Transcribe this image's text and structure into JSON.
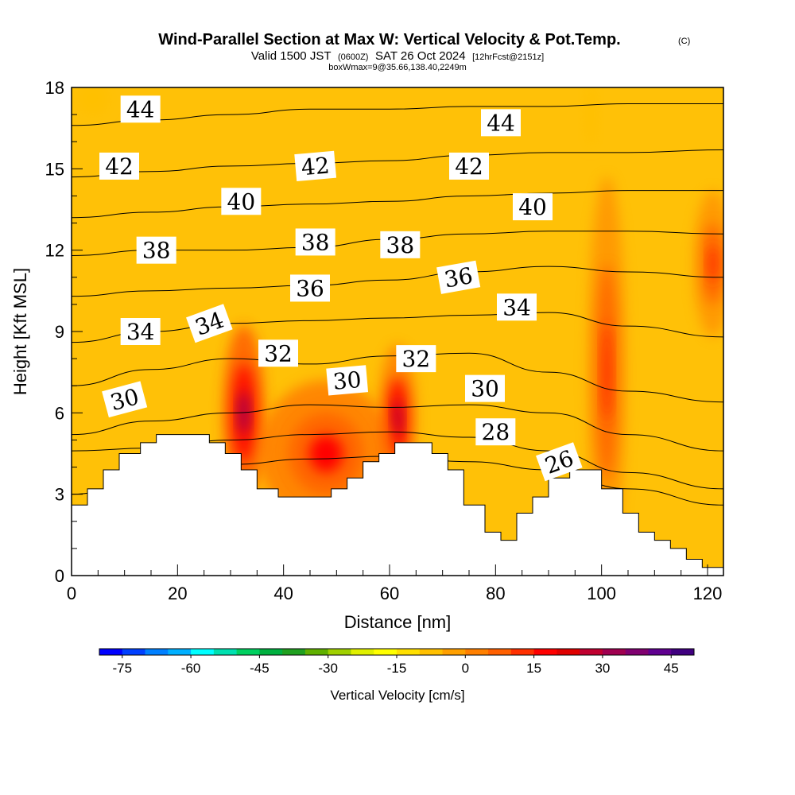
{
  "chart_data": {
    "type": "heatmap",
    "title": "Wind-Parallel Section at Max W: Vertical Velocity & Pot.Temp.",
    "title_mark": "(C)",
    "subtitle_parts": {
      "a": "Valid 1500 JST",
      "b": "(0600Z)",
      "c": "SAT 26 Oct 2024",
      "d": "[12hrFcst@2151z]"
    },
    "subtitle2": "boxWmax=9@35.66,138.40,2249m",
    "xlabel": "Distance [nm]",
    "ylabel": "Height [Kft MSL]",
    "xlim": [
      0,
      123
    ],
    "ylim": [
      0,
      18
    ],
    "x_ticks": [
      "0",
      "20",
      "40",
      "60",
      "80",
      "100",
      "120"
    ],
    "y_ticks": [
      "0",
      "3",
      "6",
      "9",
      "12",
      "15",
      "18"
    ],
    "background_fill": "#FFC107",
    "terrain_fill": "#ffffff",
    "terrain": [
      [
        0,
        2.6
      ],
      [
        3,
        2.6
      ],
      [
        3,
        3.2
      ],
      [
        6,
        3.2
      ],
      [
        6,
        3.9
      ],
      [
        9,
        3.9
      ],
      [
        9,
        4.5
      ],
      [
        13,
        4.5
      ],
      [
        13,
        4.9
      ],
      [
        16,
        4.9
      ],
      [
        16,
        5.2
      ],
      [
        26,
        5.2
      ],
      [
        26,
        4.9
      ],
      [
        29,
        4.9
      ],
      [
        29,
        4.5
      ],
      [
        32,
        4.5
      ],
      [
        32,
        3.9
      ],
      [
        35,
        3.9
      ],
      [
        35,
        3.2
      ],
      [
        39,
        3.2
      ],
      [
        39,
        2.9
      ],
      [
        49,
        2.9
      ],
      [
        49,
        3.2
      ],
      [
        52,
        3.2
      ],
      [
        52,
        3.6
      ],
      [
        55,
        3.6
      ],
      [
        55,
        4.2
      ],
      [
        58,
        4.2
      ],
      [
        58,
        4.5
      ],
      [
        61,
        4.5
      ],
      [
        61,
        4.9
      ],
      [
        68,
        4.9
      ],
      [
        68,
        4.5
      ],
      [
        71,
        4.5
      ],
      [
        71,
        3.9
      ],
      [
        74,
        3.9
      ],
      [
        74,
        2.6
      ],
      [
        78,
        2.6
      ],
      [
        78,
        1.6
      ],
      [
        81,
        1.6
      ],
      [
        81,
        1.3
      ],
      [
        84,
        1.3
      ],
      [
        84,
        2.3
      ],
      [
        87,
        2.3
      ],
      [
        87,
        2.9
      ],
      [
        90,
        2.9
      ],
      [
        90,
        3.6
      ],
      [
        94,
        3.6
      ],
      [
        94,
        3.9
      ],
      [
        100,
        3.9
      ],
      [
        100,
        3.2
      ],
      [
        104,
        3.2
      ],
      [
        104,
        2.3
      ],
      [
        107,
        2.3
      ],
      [
        107,
        1.6
      ],
      [
        110,
        1.6
      ],
      [
        110,
        1.3
      ],
      [
        113,
        1.3
      ],
      [
        113,
        1.0
      ],
      [
        116,
        1.0
      ],
      [
        116,
        0.6
      ],
      [
        119,
        0.6
      ],
      [
        119,
        0.3
      ],
      [
        123,
        0.3
      ]
    ],
    "theta_contours": [
      {
        "label": "26",
        "label_pos": [
          92,
          4.2
        ],
        "rot": -20,
        "y": [
          3.0,
          3.6,
          4.1,
          4.3,
          4.4,
          4.2,
          3.9,
          3.2,
          2.6
        ]
      },
      {
        "label": "28",
        "label_pos": [
          80,
          5.3
        ],
        "rot": 0,
        "y": [
          4.6,
          4.7,
          5.0,
          5.2,
          5.3,
          5.1,
          4.6,
          3.8,
          3.2
        ]
      },
      {
        "label": "30",
        "label_pos": [
          10,
          6.5
        ],
        "rot": -15,
        "y": [
          5.2,
          5.7,
          6.0,
          6.3,
          6.2,
          6.3,
          6.0,
          5.2,
          4.6
        ]
      },
      {
        "label": "32",
        "label_pos": [
          39,
          8.2
        ],
        "rot": 0,
        "y": [
          7.0,
          7.6,
          8.0,
          7.8,
          8.1,
          8.2,
          7.5,
          6.8,
          6.4
        ]
      },
      {
        "label": "34",
        "label_pos": [
          13,
          9.0
        ],
        "rot": 0,
        "y": [
          8.6,
          9.0,
          9.3,
          9.4,
          9.5,
          9.6,
          9.7,
          9.2,
          8.8
        ]
      },
      {
        "label": "36",
        "label_pos": [
          45,
          10.6
        ],
        "rot": 0,
        "y": [
          10.3,
          10.5,
          10.6,
          10.7,
          10.9,
          11.2,
          11.4,
          11.2,
          11.0
        ]
      },
      {
        "label": "38",
        "label_pos": [
          16,
          12.0
        ],
        "rot": 0,
        "y": [
          11.8,
          12.0,
          12.0,
          12.1,
          12.4,
          12.6,
          12.7,
          12.7,
          12.6
        ]
      },
      {
        "label": "40",
        "label_pos": [
          32,
          13.8
        ],
        "rot": 0,
        "y": [
          13.2,
          13.4,
          13.6,
          13.7,
          13.8,
          14.0,
          14.1,
          14.2,
          14.2
        ]
      },
      {
        "label": "42",
        "label_pos": [
          9,
          15.1
        ],
        "rot": 0,
        "y": [
          14.7,
          14.9,
          15.1,
          15.2,
          15.3,
          15.5,
          15.6,
          15.6,
          15.7
        ]
      },
      {
        "label": "44",
        "label_pos": [
          13,
          17.2
        ],
        "rot": 0,
        "y": [
          16.6,
          16.8,
          17.0,
          17.2,
          17.2,
          17.3,
          17.3,
          17.4,
          17.4
        ]
      }
    ],
    "contour_x": [
      0,
      15,
      30,
      45,
      60,
      75,
      90,
      105,
      123
    ],
    "extra_labels": [
      {
        "label": "34",
        "label_pos": [
          26,
          9.3
        ],
        "rot": -20
      },
      {
        "label": "30",
        "label_pos": [
          52,
          7.2
        ],
        "rot": -5
      },
      {
        "label": "32",
        "label_pos": [
          65,
          8.0
        ],
        "rot": 0
      },
      {
        "label": "30",
        "label_pos": [
          78,
          6.9
        ],
        "rot": 0
      },
      {
        "label": "34",
        "label_pos": [
          84,
          9.9
        ],
        "rot": 0
      },
      {
        "label": "36",
        "label_pos": [
          73,
          11.0
        ],
        "rot": -10
      },
      {
        "label": "38",
        "label_pos": [
          46,
          12.3
        ],
        "rot": 0
      },
      {
        "label": "38",
        "label_pos": [
          62,
          12.2
        ],
        "rot": 0
      },
      {
        "label": "40",
        "label_pos": [
          87,
          13.6
        ],
        "rot": 0
      },
      {
        "label": "42",
        "label_pos": [
          46,
          15.1
        ],
        "rot": -5
      },
      {
        "label": "42",
        "label_pos": [
          75,
          15.1
        ],
        "rot": 0
      },
      {
        "label": "44",
        "label_pos": [
          81,
          16.7
        ],
        "rot": 0
      }
    ],
    "updraft_cores": [
      {
        "x": 32.5,
        "y": 6.0,
        "rx": 2.2,
        "ry": 1.8,
        "w": 30
      },
      {
        "x": 61.5,
        "y": 5.8,
        "rx": 2.0,
        "ry": 1.5,
        "w": 25
      },
      {
        "x": 48,
        "y": 4.5,
        "rx": 7,
        "ry": 1.5,
        "w": 15
      },
      {
        "x": 101,
        "y": 7.5,
        "rx": 2,
        "ry": 4,
        "w": 10
      },
      {
        "x": 121,
        "y": 11.5,
        "rx": 2,
        "ry": 1.5,
        "w": 12
      }
    ],
    "downdraft_spots": [
      {
        "x": 4,
        "y": 17.6,
        "rx": 3,
        "ry": 0.6,
        "w": -10
      },
      {
        "x": 98,
        "y": 17.0,
        "rx": 1.2,
        "ry": 1.2,
        "w": -10
      }
    ],
    "colorbar": {
      "label": "Vertical Velocity [cm/s]",
      "ticks": [
        "-75",
        "-60",
        "-45",
        "-30",
        "-15",
        "0",
        "15",
        "30",
        "45"
      ],
      "tick_values": [
        -75,
        -60,
        -45,
        -30,
        -15,
        0,
        15,
        30,
        45
      ],
      "range": [
        -80,
        50
      ],
      "colors": [
        "#0000FF",
        "#0040FF",
        "#0080FF",
        "#00B0FF",
        "#00FFFF",
        "#00E0B0",
        "#00D060",
        "#00B040",
        "#20A020",
        "#60B000",
        "#A0D000",
        "#E0F000",
        "#FFFF00",
        "#FFE000",
        "#FFC000",
        "#FFA000",
        "#FF8000",
        "#FF6000",
        "#FF3000",
        "#FF0000",
        "#E00000",
        "#C00030",
        "#A00050",
        "#800070",
        "#600090",
        "#400080"
      ]
    }
  }
}
